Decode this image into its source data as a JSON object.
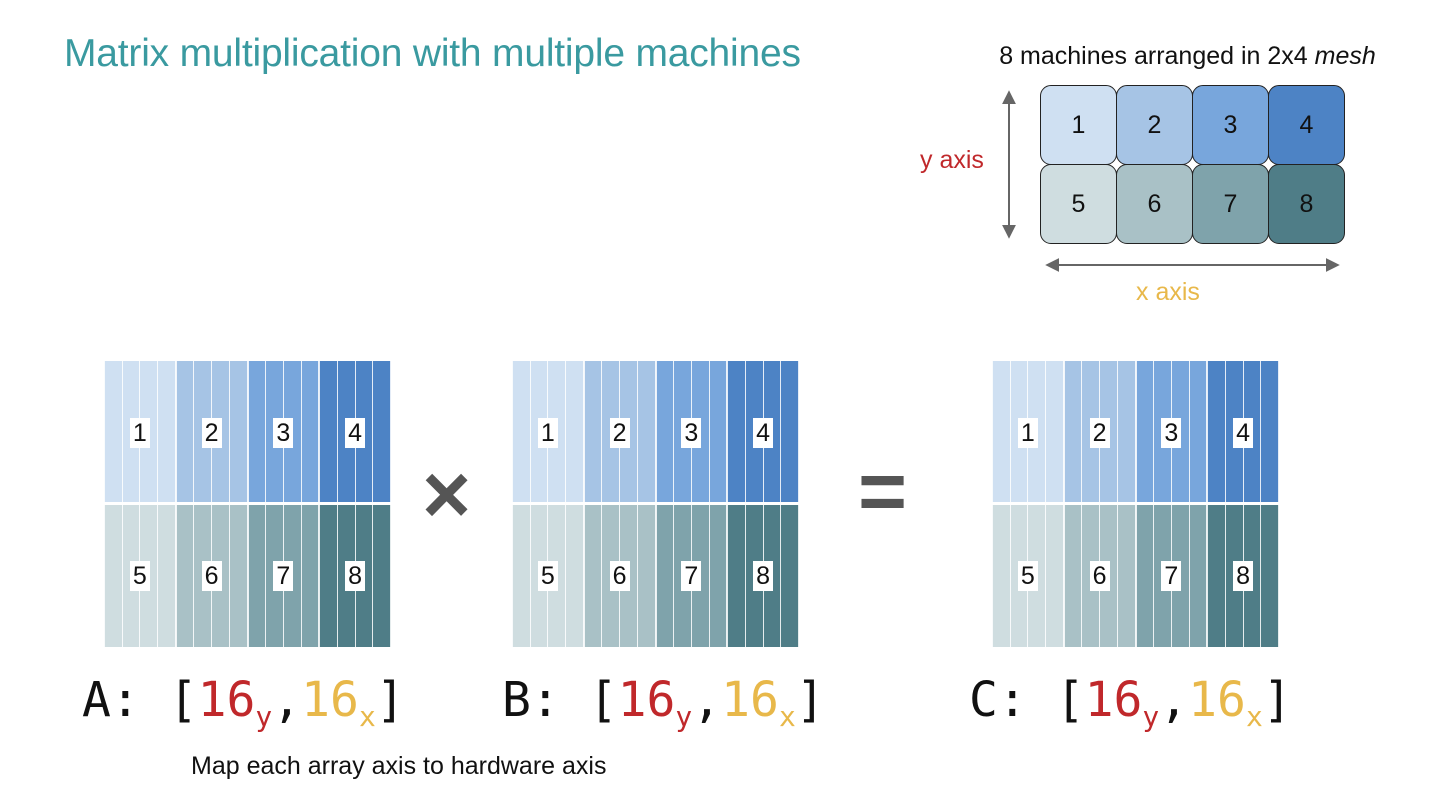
{
  "title": "Matrix multiplication with multiple machines",
  "mesh": {
    "caption_prefix": "8 machines arranged in 2x4 ",
    "caption_emphasis": "mesh",
    "y_axis_label": "y axis",
    "x_axis_label": "x axis",
    "machines": [
      "1",
      "2",
      "3",
      "4",
      "5",
      "6",
      "7",
      "8"
    ]
  },
  "colors": {
    "machine_fills": [
      "#cfe0f2",
      "#a6c4e5",
      "#78a6dc",
      "#4d83c5",
      "#cfdde0",
      "#a9c1c6",
      "#7fa3ab",
      "#4f7d87"
    ],
    "y_axis": "#c0282b",
    "x_axis": "#e8b84a",
    "title": "#3a9aa0"
  },
  "matrices": [
    {
      "name": "A",
      "prefix": "A: [",
      "dim1": "16",
      "sub1": "y",
      "sep": ",",
      "dim2": "16",
      "sub2": "x",
      "suffix": "]",
      "blocks": [
        "1",
        "2",
        "3",
        "4",
        "5",
        "6",
        "7",
        "8"
      ]
    },
    {
      "name": "B",
      "prefix": "B: [",
      "dim1": "16",
      "sub1": "y",
      "sep": ",",
      "dim2": "16",
      "sub2": "x",
      "suffix": "]",
      "blocks": [
        "1",
        "2",
        "3",
        "4",
        "5",
        "6",
        "7",
        "8"
      ]
    },
    {
      "name": "C",
      "prefix": "C: [",
      "dim1": "16",
      "sub1": "y",
      "sep": ",",
      "dim2": "16",
      "sub2": "x",
      "suffix": "]",
      "blocks": [
        "1",
        "2",
        "3",
        "4",
        "5",
        "6",
        "7",
        "8"
      ]
    }
  ],
  "operators": {
    "multiply": "×",
    "equals": "="
  },
  "footer": "Map each array axis to hardware axis"
}
